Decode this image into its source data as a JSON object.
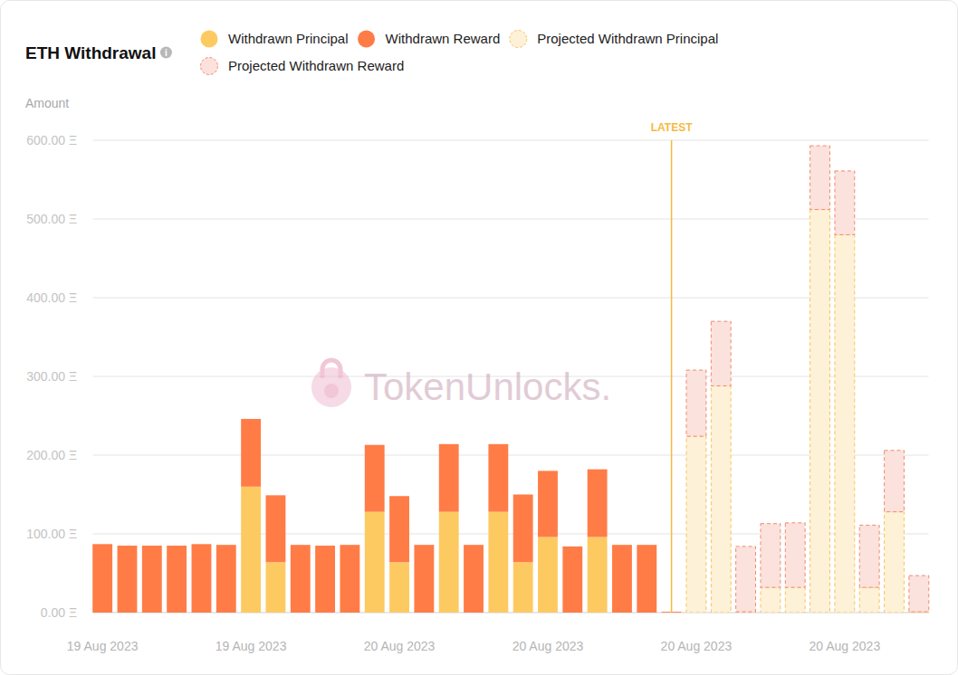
{
  "chart_data": {
    "type": "bar",
    "title": "ETH Withdrawal",
    "y_label": "Amount",
    "watermark": "TokenUnlocks.",
    "stacked": true,
    "grid": true,
    "legend": "top",
    "categories": [
      "19 Aug 2023",
      null,
      null,
      null,
      null,
      null,
      "19 Aug 2023",
      null,
      null,
      null,
      null,
      null,
      "20 Aug 2023",
      null,
      null,
      null,
      null,
      null,
      "20 Aug 2023",
      null,
      null,
      null,
      null,
      null,
      "20 Aug 2023",
      null,
      null,
      null,
      null,
      null,
      "20 Aug 2023",
      null,
      null,
      null
    ],
    "annotations": [
      {
        "label": "LATEST",
        "at": 23
      }
    ],
    "ylim": [
      0,
      600
    ],
    "yticks": [
      {
        "value": 0,
        "label": "0.00 Ξ"
      },
      {
        "value": 100,
        "label": "100.00 Ξ"
      },
      {
        "value": 200,
        "label": "200.00 Ξ"
      },
      {
        "value": 300,
        "label": "300.00 Ξ"
      },
      {
        "value": 400,
        "label": "400.00 Ξ"
      },
      {
        "value": 500,
        "label": "500.00 Ξ"
      },
      {
        "value": 600,
        "label": "600.00 Ξ"
      }
    ],
    "series": [
      {
        "name": "Withdrawn Principal",
        "color": "#fdca62",
        "marker": "circle",
        "line_style": "solid",
        "values": [
          0,
          0,
          0,
          0,
          0,
          0,
          160,
          64,
          0,
          0,
          0,
          128,
          64,
          0,
          128,
          0,
          128,
          64,
          96,
          0,
          96,
          0,
          0,
          0,
          null,
          null,
          null,
          null,
          null,
          null,
          null,
          null,
          null,
          null
        ]
      },
      {
        "name": "Withdrawn Reward",
        "color": "#ff7c47",
        "marker": "circle",
        "line_style": "solid",
        "values": [
          87,
          85,
          85,
          85,
          87,
          86,
          86,
          85,
          86,
          85,
          86,
          85,
          84,
          86,
          86,
          86,
          86,
          86,
          84,
          84,
          86,
          86,
          86,
          1,
          null,
          null,
          null,
          null,
          null,
          null,
          null,
          null,
          null,
          null
        ]
      },
      {
        "name": "Projected Withdrawn Principal",
        "color": "#f7c55e",
        "marker": "circle",
        "line_style": "dashed",
        "values": [
          null,
          null,
          null,
          null,
          null,
          null,
          null,
          null,
          null,
          null,
          null,
          null,
          null,
          null,
          null,
          null,
          null,
          null,
          null,
          null,
          null,
          null,
          null,
          null,
          224,
          288,
          1,
          32,
          32,
          512,
          480,
          32,
          128,
          1
        ]
      },
      {
        "name": "Projected Withdrawn Reward",
        "color": "#f08a72",
        "marker": "circle",
        "line_style": "dashed",
        "values": [
          null,
          null,
          null,
          null,
          null,
          null,
          null,
          null,
          null,
          null,
          null,
          null,
          null,
          null,
          null,
          null,
          null,
          null,
          null,
          null,
          null,
          null,
          null,
          null,
          84,
          82,
          83,
          81,
          82,
          81,
          81,
          79,
          78,
          46
        ]
      }
    ]
  }
}
